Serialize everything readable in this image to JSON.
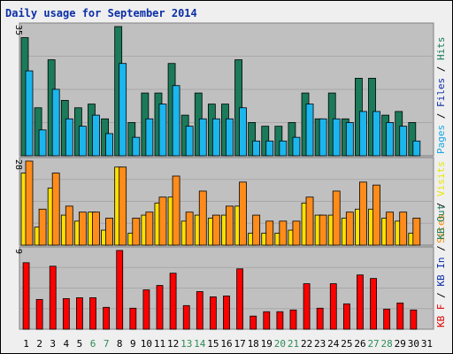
{
  "title": "Daily usage for September 2014",
  "chart_data": [
    {
      "type": "bar",
      "panel": "top",
      "ymax_label": "35",
      "ylim": [
        0,
        35
      ],
      "side_label": [
        {
          "text": "Pages",
          "color": "#1aa7e0"
        },
        {
          "text": " / ",
          "color": "#000000"
        },
        {
          "text": "Files",
          "color": "#0b2ea6"
        },
        {
          "text": " / ",
          "color": "#000000"
        },
        {
          "text": "Hits",
          "color": "#1b7a5a"
        }
      ],
      "series": [
        {
          "name": "Hits",
          "color": "#1b7a5a",
          "values": [
            32,
            13,
            26,
            15,
            13,
            14,
            10,
            35,
            9,
            17,
            17,
            25,
            11,
            17,
            14,
            14,
            26,
            9,
            8,
            8,
            9,
            17,
            10,
            17,
            10,
            21,
            21,
            11,
            12,
            9
          ]
        },
        {
          "name": "Files",
          "color": "#1bb6ee",
          "values": [
            23,
            7,
            18,
            10,
            8,
            11,
            6,
            25,
            5,
            10,
            14,
            19,
            8,
            10,
            10,
            10,
            13,
            4,
            4,
            4,
            5,
            14,
            10,
            10,
            9,
            12,
            12,
            9,
            8,
            4
          ]
        }
      ]
    },
    {
      "type": "bar",
      "panel": "middle",
      "ymax_label": "28",
      "ylim": [
        0,
        28
      ],
      "side_label": [
        {
          "text": "Sites",
          "color": "#ff8a00"
        },
        {
          "text": " / ",
          "color": "#000000"
        },
        {
          "text": "Visits",
          "color": "#e8e800"
        }
      ],
      "series": [
        {
          "name": "Visits",
          "color": "#ffe000",
          "values": [
            24,
            6,
            19,
            10,
            8,
            11,
            5,
            26,
            4,
            10,
            14,
            16,
            8,
            10,
            9,
            10,
            13,
            4,
            4,
            4,
            5,
            14,
            10,
            10,
            9,
            12,
            12,
            9,
            8,
            4
          ]
        },
        {
          "name": "Sites",
          "color": "#ff8c1a",
          "values": [
            28,
            12,
            24,
            13,
            11,
            11,
            9,
            26,
            9,
            11,
            16,
            23,
            11,
            18,
            10,
            13,
            21,
            10,
            8,
            8,
            8,
            16,
            10,
            18,
            11,
            21,
            20,
            11,
            11,
            9
          ]
        }
      ]
    },
    {
      "type": "bar",
      "panel": "bottom",
      "ymax_label": "9",
      "ylim": [
        0,
        9
      ],
      "side_label": [
        {
          "text": "KB F",
          "color": "#e00000"
        },
        {
          "text": " / ",
          "color": "#000000"
        },
        {
          "text": "KB In",
          "color": "#0b2ea6"
        },
        {
          "text": " / ",
          "color": "#000000"
        },
        {
          "text": "KB Out",
          "color": "#1b7a5a"
        }
      ],
      "series": [
        {
          "name": "KB F",
          "color": "#ff0000",
          "values": [
            7.6,
            3.4,
            7.2,
            3.5,
            3.6,
            3.6,
            2.5,
            9,
            2.4,
            4.5,
            5,
            6.4,
            2.7,
            4.3,
            3.7,
            3.8,
            6.9,
            1.5,
            2,
            2,
            2.2,
            5.2,
            2.4,
            5.2,
            2.9,
            6.2,
            5.8,
            2.3,
            3,
            2.2
          ]
        }
      ]
    }
  ],
  "x_labels": [
    "1",
    "2",
    "3",
    "4",
    "5",
    "6",
    "7",
    "8",
    "9",
    "10",
    "11",
    "12",
    "13",
    "14",
    "15",
    "16",
    "17",
    "18",
    "19",
    "20",
    "21",
    "22",
    "23",
    "24",
    "25",
    "26",
    "27",
    "28",
    "29",
    "30",
    "31"
  ],
  "weekend_days": [
    6,
    7,
    13,
    14,
    20,
    21,
    27,
    28
  ],
  "weekday_color": "#000000",
  "weekend_color": "#2e8b57"
}
